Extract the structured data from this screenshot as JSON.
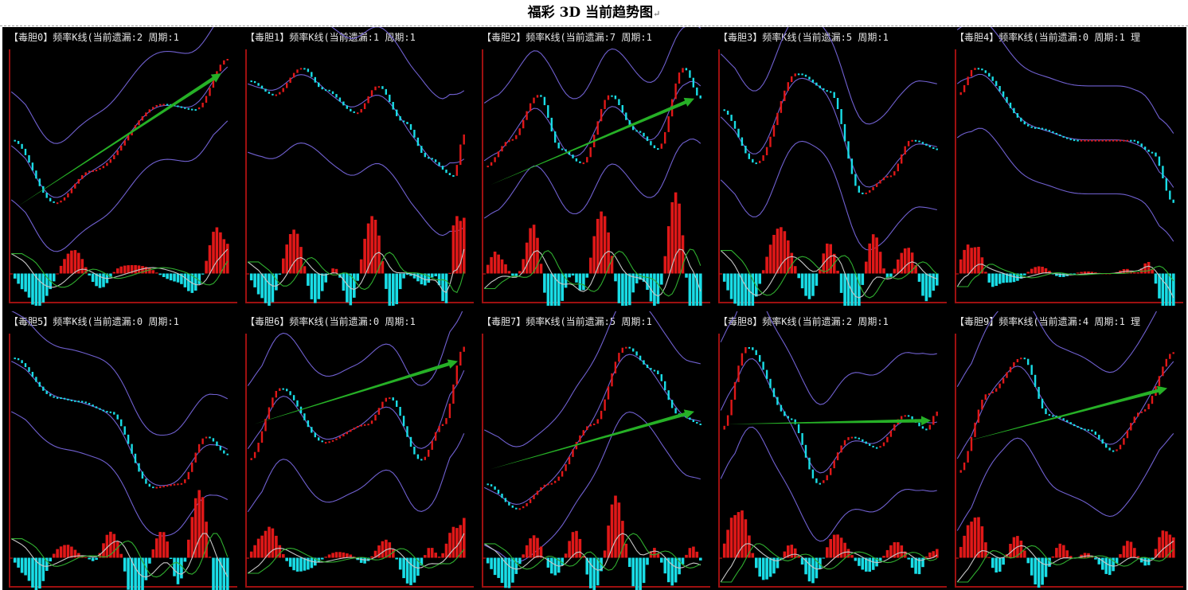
{
  "title": "福彩 3D 当前趋势图",
  "title_mark": "↵",
  "colors": {
    "background": "#000000",
    "frame": "#9e1010",
    "candle_up": "#e01818",
    "candle_down": "#19dde6",
    "band": "#7060d0",
    "macd_fast": "#c8c8c8",
    "macd_slow": "#2fae2f",
    "trend_arrow": "#26b026",
    "label_text": "#e6e6e6"
  },
  "chart_data": [
    {
      "type": "candlestick",
      "label": "【毒胆0】频率K线(当前遗漏:2 周期:1",
      "anchors": [
        [
          0,
          0.55
        ],
        [
          0.2,
          0.2
        ],
        [
          0.37,
          0.38
        ],
        [
          0.7,
          0.75
        ],
        [
          0.85,
          0.72
        ],
        [
          1,
          1
        ]
      ],
      "trend": [
        0.18,
        0.92
      ],
      "bw": 0.3
    },
    {
      "type": "candlestick",
      "label": "【毒胆1】频率K线(当前遗漏:1 周期:1",
      "anchors": [
        [
          0,
          0.88
        ],
        [
          0.12,
          0.8
        ],
        [
          0.25,
          0.95
        ],
        [
          0.35,
          0.83
        ],
        [
          0.5,
          0.7
        ],
        [
          0.6,
          0.85
        ],
        [
          0.72,
          0.65
        ],
        [
          0.83,
          0.45
        ],
        [
          0.95,
          0.35
        ],
        [
          1,
          0.58
        ]
      ],
      "trend": null,
      "bw": 0.38
    },
    {
      "type": "candlestick",
      "label": "【毒胆2】频率K线(当前遗漏:7 周期:1",
      "anchors": [
        [
          0,
          0.4
        ],
        [
          0.12,
          0.55
        ],
        [
          0.25,
          0.8
        ],
        [
          0.35,
          0.5
        ],
        [
          0.45,
          0.42
        ],
        [
          0.58,
          0.8
        ],
        [
          0.7,
          0.6
        ],
        [
          0.8,
          0.5
        ],
        [
          0.92,
          0.95
        ],
        [
          1,
          0.78
        ]
      ],
      "trend": [
        0.3,
        0.78
      ],
      "bw": 0.32
    },
    {
      "type": "candlestick",
      "label": "【毒胆3】频率K线(当前遗漏:5 周期:1",
      "anchors": [
        [
          0,
          0.72
        ],
        [
          0.16,
          0.42
        ],
        [
          0.35,
          0.92
        ],
        [
          0.5,
          0.82
        ],
        [
          0.65,
          0.25
        ],
        [
          0.78,
          0.35
        ],
        [
          0.88,
          0.55
        ],
        [
          1,
          0.5
        ]
      ],
      "trend": null,
      "bw": 0.35
    },
    {
      "type": "candlestick",
      "label": "【毒胆4】频率K线(当前遗漏:0 周期:1 理",
      "anchors": [
        [
          0,
          0.8
        ],
        [
          0.08,
          0.95
        ],
        [
          0.35,
          0.62
        ],
        [
          0.55,
          0.55
        ],
        [
          0.8,
          0.55
        ],
        [
          0.9,
          0.48
        ],
        [
          1,
          0.2
        ]
      ],
      "trend": null,
      "bw": 0.3
    },
    {
      "type": "candlestick",
      "label": "【毒胆5】频率K线(当前遗漏:0 周期:1",
      "anchors": [
        [
          0,
          0.92
        ],
        [
          0.2,
          0.7
        ],
        [
          0.3,
          0.68
        ],
        [
          0.45,
          0.62
        ],
        [
          0.65,
          0.2
        ],
        [
          0.78,
          0.22
        ],
        [
          0.9,
          0.48
        ],
        [
          1,
          0.38
        ]
      ],
      "trend": null,
      "bw": 0.28
    },
    {
      "type": "candlestick",
      "label": "【毒胆6】频率K线(当前遗漏:0 周期:1",
      "anchors": [
        [
          0,
          0.35
        ],
        [
          0.15,
          0.75
        ],
        [
          0.35,
          0.45
        ],
        [
          0.55,
          0.55
        ],
        [
          0.65,
          0.7
        ],
        [
          0.8,
          0.35
        ],
        [
          0.9,
          0.55
        ],
        [
          1,
          0.98
        ]
      ],
      "trend": [
        0.55,
        0.9
      ],
      "bw": 0.35
    },
    {
      "type": "candlestick",
      "label": "【毒胆7】频率K线(当前遗漏:5 周期:1",
      "anchors": [
        [
          0,
          0.22
        ],
        [
          0.15,
          0.08
        ],
        [
          0.3,
          0.22
        ],
        [
          0.5,
          0.55
        ],
        [
          0.65,
          0.98
        ],
        [
          0.78,
          0.85
        ],
        [
          0.9,
          0.6
        ],
        [
          1,
          0.55
        ]
      ],
      "trend": [
        0.3,
        0.62
      ],
      "bw": 0.32
    },
    {
      "type": "candlestick",
      "label": "【毒胆8】频率K线(当前遗漏:2 周期:1",
      "anchors": [
        [
          0,
          0.52
        ],
        [
          0.12,
          0.98
        ],
        [
          0.32,
          0.58
        ],
        [
          0.45,
          0.22
        ],
        [
          0.6,
          0.48
        ],
        [
          0.72,
          0.42
        ],
        [
          0.85,
          0.6
        ],
        [
          0.95,
          0.52
        ],
        [
          1,
          0.62
        ]
      ],
      "trend": [
        0.55,
        0.57
      ],
      "bw": 0.38
    },
    {
      "type": "candlestick",
      "label": "【毒胆9】频率K线(当前遗漏:4 周期:1 理",
      "anchors": [
        [
          0,
          0.28
        ],
        [
          0.14,
          0.72
        ],
        [
          0.3,
          0.92
        ],
        [
          0.42,
          0.6
        ],
        [
          0.6,
          0.52
        ],
        [
          0.72,
          0.4
        ],
        [
          0.85,
          0.62
        ],
        [
          1,
          0.95
        ]
      ],
      "trend": [
        0.45,
        0.75
      ],
      "bw": 0.4
    }
  ]
}
